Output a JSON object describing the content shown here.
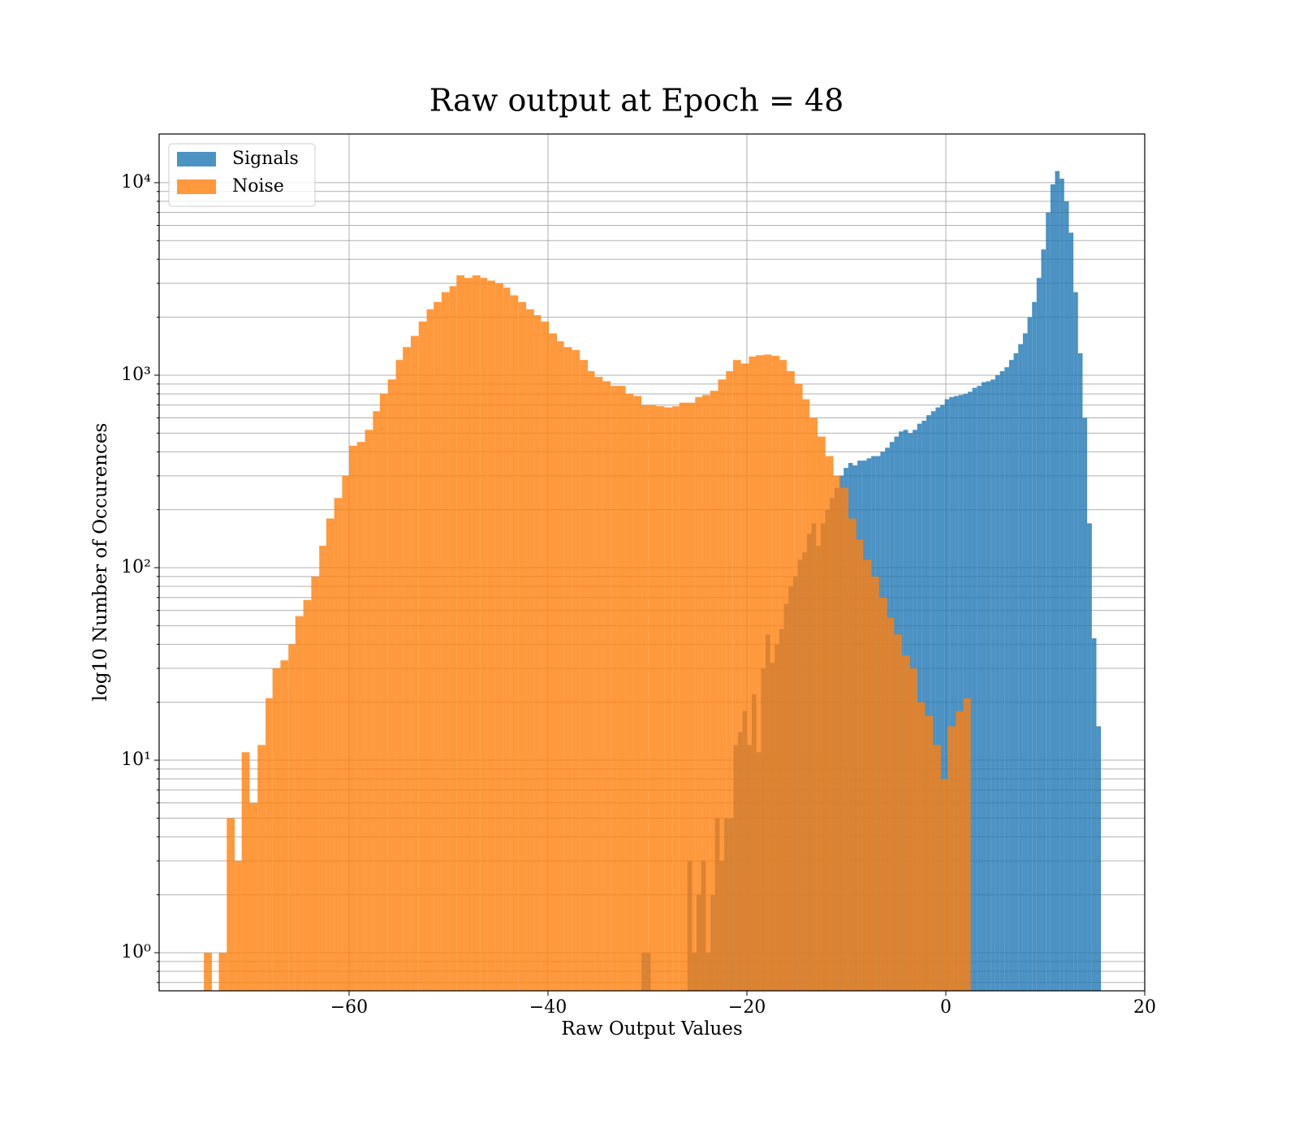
{
  "chart_data": {
    "type": "histogram",
    "title": "Raw output at Epoch = 48",
    "xlabel": "Raw Output Values",
    "ylabel": "log10 Number of Occurences",
    "log_y": true,
    "grid": true,
    "legend": "upper left",
    "xlim": [
      -79.1,
      20
    ],
    "ylim": [
      0.634,
      17900
    ],
    "xticks": [
      {
        "value": -60,
        "label": "−60"
      },
      {
        "value": -40,
        "label": "−40"
      },
      {
        "value": -20,
        "label": "−20"
      },
      0,
      20
    ],
    "yticks": [
      {
        "value": 1,
        "label": "10⁰"
      },
      {
        "value": 10,
        "label": "10¹"
      },
      {
        "value": 100,
        "label": "10²"
      },
      {
        "value": 1000,
        "label": "10³"
      },
      {
        "value": 10000,
        "label": "10⁴"
      }
    ],
    "yticks_minor": [
      0.7,
      0.8,
      0.9,
      2,
      3,
      4,
      5,
      6,
      7,
      8,
      9,
      20,
      30,
      40,
      50,
      60,
      70,
      80,
      90,
      200,
      300,
      400,
      500,
      600,
      700,
      800,
      900,
      2000,
      3000,
      4000,
      5000,
      6000,
      7000,
      8000,
      9000
    ],
    "series": [
      {
        "name": "Signals",
        "color": "#1f77b4",
        "bins": [
          -30.6,
          -30.14,
          -29.68,
          -29.21,
          -28.75,
          -28.29,
          -27.83,
          -27.37,
          -26.9,
          -26.44,
          -25.98,
          -25.52,
          -25.06,
          -24.59,
          -24.13,
          -23.67,
          -23.21,
          -22.75,
          -22.28,
          -21.82,
          -21.36,
          -20.9,
          -20.44,
          -19.97,
          -19.51,
          -19.05,
          -18.59,
          -18.13,
          -17.66,
          -17.2,
          -16.74,
          -16.28,
          -15.82,
          -15.35,
          -14.89,
          -14.43,
          -13.97,
          -13.51,
          -13.04,
          -12.58,
          -12.12,
          -11.66,
          -11.2,
          -10.73,
          -10.27,
          -9.81,
          -9.35,
          -8.89,
          -8.42,
          -7.96,
          -7.5,
          -7.04,
          -6.58,
          -6.11,
          -5.65,
          -5.19,
          -4.73,
          -4.27,
          -3.8,
          -3.34,
          -2.88,
          -2.42,
          -1.96,
          -1.49,
          -1.03,
          -0.57,
          -0.11,
          0.35,
          0.82,
          1.28,
          1.74,
          2.2,
          2.66,
          3.13,
          3.59,
          4.05,
          4.51,
          4.97,
          5.44,
          5.9,
          6.36,
          6.82,
          7.28,
          7.75,
          8.21,
          8.67,
          9.13,
          9.59,
          10.06,
          10.52,
          10.98,
          11.44,
          11.9,
          12.37,
          12.83,
          13.29,
          13.75,
          14.21,
          14.68,
          15.14,
          15.6
        ],
        "values": [
          1,
          1,
          0,
          0,
          0,
          0,
          0,
          0,
          0,
          0,
          3,
          1,
          2,
          3,
          1,
          2,
          5,
          3,
          5,
          5,
          12,
          14,
          18,
          12,
          22,
          11,
          30,
          45,
          32,
          40,
          48,
          65,
          80,
          90,
          110,
          120,
          150,
          170,
          130,
          170,
          200,
          230,
          260,
          300,
          330,
          350,
          340,
          360,
          360,
          370,
          380,
          380,
          400,
          420,
          450,
          480,
          510,
          520,
          500,
          520,
          560,
          580,
          620,
          650,
          680,
          700,
          750,
          770,
          780,
          790,
          800,
          820,
          860,
          880,
          920,
          930,
          950,
          1000,
          1050,
          1100,
          1200,
          1300,
          1450,
          1650,
          2000,
          2400,
          3200,
          4500,
          7000,
          9800,
          11500,
          10500,
          8000,
          5500,
          2700,
          1300,
          600,
          170,
          43,
          15
        ]
      },
      {
        "name": "Noise",
        "color": "#ff7f0e",
        "bins": [
          -74.6,
          -73.8,
          -73.1,
          -72.3,
          -71.5,
          -70.8,
          -70.0,
          -69.2,
          -68.4,
          -67.7,
          -66.9,
          -66.1,
          -65.4,
          -64.6,
          -63.8,
          -63.0,
          -62.3,
          -61.5,
          -60.7,
          -60.0,
          -59.2,
          -58.4,
          -57.6,
          -56.9,
          -56.1,
          -55.3,
          -54.6,
          -53.8,
          -53.0,
          -52.2,
          -51.5,
          -50.7,
          -49.9,
          -49.2,
          -48.4,
          -47.6,
          -46.8,
          -46.1,
          -45.3,
          -44.5,
          -43.8,
          -43.0,
          -42.2,
          -41.4,
          -40.7,
          -39.9,
          -39.1,
          -38.4,
          -37.6,
          -36.8,
          -36.0,
          -35.3,
          -34.5,
          -33.7,
          -33.0,
          -32.2,
          -31.4,
          -30.6,
          -29.9,
          -29.1,
          -28.3,
          -27.5,
          -26.8,
          -26.0,
          -25.2,
          -24.5,
          -23.7,
          -22.9,
          -22.1,
          -21.4,
          -20.6,
          -19.8,
          -19.1,
          -18.3,
          -17.5,
          -16.7,
          -16.0,
          -15.2,
          -14.4,
          -13.7,
          -12.9,
          -12.1,
          -11.3,
          -10.6,
          -9.8,
          -9.0,
          -8.3,
          -7.5,
          -6.7,
          -5.9,
          -5.2,
          -4.4,
          -3.6,
          -2.9,
          -2.1,
          -1.3,
          -0.5,
          0.2,
          1.0,
          1.8,
          2.5
        ],
        "values": [
          1,
          0,
          1,
          5,
          3,
          11,
          6,
          12,
          21,
          30,
          33,
          40,
          56,
          68,
          90,
          130,
          180,
          230,
          300,
          430,
          450,
          520,
          650,
          800,
          950,
          1200,
          1400,
          1600,
          1900,
          2200,
          2400,
          2700,
          2900,
          3300,
          3200,
          3300,
          3200,
          3100,
          3000,
          2850,
          2600,
          2400,
          2200,
          2050,
          1900,
          1650,
          1500,
          1400,
          1350,
          1200,
          1050,
          980,
          930,
          880,
          880,
          800,
          780,
          700,
          700,
          690,
          680,
          690,
          720,
          720,
          770,
          790,
          830,
          950,
          1050,
          1200,
          1150,
          1250,
          1270,
          1280,
          1260,
          1200,
          1050,
          900,
          750,
          600,
          480,
          380,
          300,
          260,
          180,
          140,
          110,
          90,
          70,
          55,
          45,
          35,
          30,
          20,
          17,
          12,
          8,
          15,
          18,
          21
        ]
      }
    ]
  }
}
